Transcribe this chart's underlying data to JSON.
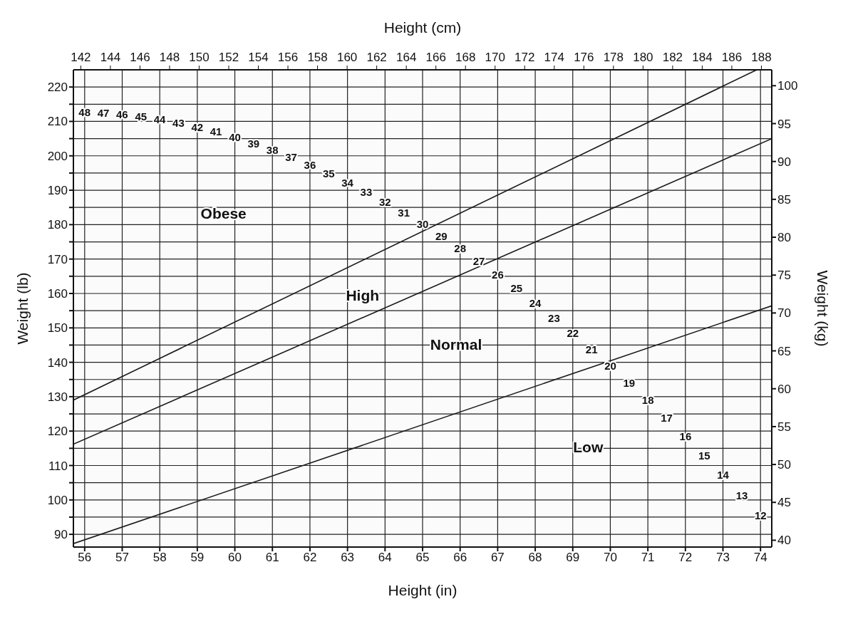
{
  "chart_data": {
    "type": "line",
    "xlabel": "Height (in)",
    "x2label": "Height (cm)",
    "ylabel": "Weight (lb)",
    "y2label": "Weight (kg)",
    "xlim": [
      55.7,
      74.3
    ],
    "xticks": [
      56,
      57,
      58,
      59,
      60,
      61,
      62,
      63,
      64,
      65,
      66,
      67,
      68,
      69,
      70,
      71,
      72,
      73,
      74
    ],
    "x2lim": [
      141.5,
      188.7
    ],
    "x2ticks": [
      142,
      144,
      146,
      148,
      150,
      152,
      154,
      156,
      158,
      160,
      162,
      164,
      166,
      168,
      170,
      172,
      174,
      176,
      178,
      180,
      182,
      184,
      186,
      188
    ],
    "ylim": [
      86.3,
      225
    ],
    "yticks": [
      90,
      {
        "value": 95,
        "label": null
      },
      100,
      {
        "value": 105,
        "label": null
      },
      110,
      {
        "value": 115,
        "label": null
      },
      120,
      {
        "value": 125,
        "label": null
      },
      130,
      {
        "value": 135,
        "label": null
      },
      140,
      {
        "value": 145,
        "label": null
      },
      150,
      {
        "value": 155,
        "label": null
      },
      160,
      {
        "value": 165,
        "label": null
      },
      170,
      {
        "value": 175,
        "label": null
      },
      180,
      {
        "value": 185,
        "label": null
      },
      190,
      {
        "value": 195,
        "label": null
      },
      200,
      {
        "value": 205,
        "label": null
      },
      210,
      {
        "value": 215,
        "label": null
      },
      220
    ],
    "y2lim": [
      39.1,
      102.1
    ],
    "y2ticks": [
      40,
      45,
      50,
      55,
      60,
      65,
      70,
      75,
      80,
      85,
      90,
      95,
      100
    ],
    "grid": true,
    "legend": false,
    "marker": "none",
    "line_style": "solid",
    "series": [
      {
        "color": "#1a1a1a",
        "x": [
          55.7,
          73.9
        ],
        "values": [
          129,
          225
        ]
      },
      {
        "color": "#1a1a1a",
        "x": [
          55.7,
          74.3
        ],
        "values": [
          116.2,
          205
        ]
      },
      {
        "color": "#1a1a1a",
        "x": [
          55.7,
          74.3
        ],
        "values": [
          87.3,
          156.4
        ]
      }
    ],
    "annotations": [
      "Obese",
      "High",
      "Normal",
      "Low",
      "48",
      "47",
      "46",
      "45",
      "44",
      "43",
      "42",
      "41",
      "40",
      "39",
      "38",
      "37",
      "36",
      "35",
      "34",
      "33",
      "32",
      "31",
      "30",
      "29",
      "28",
      "27",
      "26",
      "25",
      "24",
      "23",
      "22",
      "21",
      "20",
      "19",
      "18",
      "17",
      "16",
      "15",
      "14",
      "13",
      "12"
    ]
  }
}
